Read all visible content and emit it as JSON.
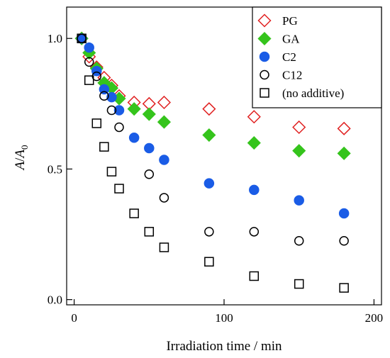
{
  "chart_data": {
    "type": "scatter",
    "xlabel": "Irradiation time / min",
    "ylabel_main": "A",
    "ylabel_slash": "/",
    "ylabel_base": "A",
    "ylabel_sub": "0",
    "xlim": [
      -5,
      205
    ],
    "ylim": [
      -0.02,
      1.12
    ],
    "xticks": [
      0,
      100,
      200
    ],
    "xtick_labels": [
      "0",
      "100",
      "200"
    ],
    "yticks": [
      0.0,
      0.5,
      1.0
    ],
    "ytick_labels": [
      "0.0",
      "0.5",
      "1.0"
    ],
    "legend_position": "top-right",
    "series": [
      {
        "name": "PG",
        "marker": "diamond-open",
        "color": "#e02020",
        "points": [
          [
            5,
            1.0
          ],
          [
            10,
            0.93
          ],
          [
            15,
            0.89
          ],
          [
            20,
            0.85
          ],
          [
            25,
            0.82
          ],
          [
            30,
            0.78
          ],
          [
            40,
            0.755
          ],
          [
            50,
            0.75
          ],
          [
            60,
            0.755
          ],
          [
            90,
            0.73
          ],
          [
            120,
            0.7
          ],
          [
            150,
            0.66
          ],
          [
            180,
            0.655
          ]
        ]
      },
      {
        "name": "GA",
        "marker": "diamond-filled",
        "color": "#35c41c",
        "points": [
          [
            5,
            1.0
          ],
          [
            10,
            0.945
          ],
          [
            15,
            0.885
          ],
          [
            20,
            0.83
          ],
          [
            25,
            0.81
          ],
          [
            30,
            0.77
          ],
          [
            40,
            0.73
          ],
          [
            50,
            0.71
          ],
          [
            60,
            0.68
          ],
          [
            90,
            0.63
          ],
          [
            120,
            0.6
          ],
          [
            150,
            0.57
          ],
          [
            180,
            0.56
          ]
        ]
      },
      {
        "name": "C2",
        "marker": "circle-filled",
        "color": "#1a5ce6",
        "points": [
          [
            5,
            1.0
          ],
          [
            10,
            0.965
          ],
          [
            15,
            0.875
          ],
          [
            20,
            0.805
          ],
          [
            25,
            0.775
          ],
          [
            30,
            0.725
          ],
          [
            40,
            0.62
          ],
          [
            50,
            0.58
          ],
          [
            60,
            0.535
          ],
          [
            90,
            0.445
          ],
          [
            120,
            0.42
          ],
          [
            150,
            0.38
          ],
          [
            180,
            0.33
          ]
        ]
      },
      {
        "name": "C12",
        "marker": "circle-open",
        "color": "#000000",
        "points": [
          [
            5,
            1.0
          ],
          [
            10,
            0.91
          ],
          [
            15,
            0.855
          ],
          [
            20,
            0.78
          ],
          [
            25,
            0.725
          ],
          [
            30,
            0.66
          ],
          [
            50,
            0.48
          ],
          [
            60,
            0.39
          ],
          [
            90,
            0.26
          ],
          [
            120,
            0.26
          ],
          [
            150,
            0.225
          ],
          [
            180,
            0.225
          ]
        ]
      },
      {
        "name": "(no additive)",
        "marker": "square-open",
        "color": "#000000",
        "points": [
          [
            5,
            1.0
          ],
          [
            10,
            0.84
          ],
          [
            15,
            0.675
          ],
          [
            20,
            0.585
          ],
          [
            25,
            0.49
          ],
          [
            30,
            0.425
          ],
          [
            40,
            0.33
          ],
          [
            50,
            0.26
          ],
          [
            60,
            0.2
          ],
          [
            90,
            0.145
          ],
          [
            120,
            0.09
          ],
          [
            150,
            0.06
          ],
          [
            180,
            0.045
          ]
        ]
      }
    ]
  }
}
